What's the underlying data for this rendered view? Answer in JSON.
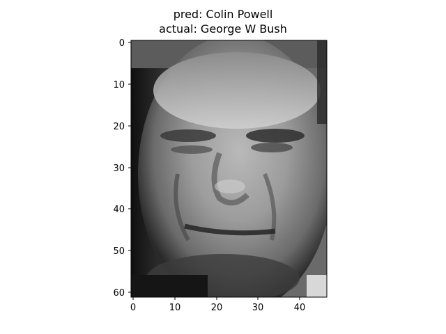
{
  "figure": {
    "title_lines": [
      "pred: Colin Powell",
      "actual: George W Bush"
    ]
  },
  "axes": {
    "x_ticks": [
      "0",
      "10",
      "20",
      "30",
      "40"
    ],
    "y_ticks": [
      "0",
      "10",
      "20",
      "30",
      "40",
      "50",
      "60"
    ],
    "x_range": [
      0,
      46
    ],
    "y_range": [
      0,
      61
    ]
  },
  "image": {
    "description_icon": "grayscale-face-photo-icon",
    "colormap": "gray"
  }
}
